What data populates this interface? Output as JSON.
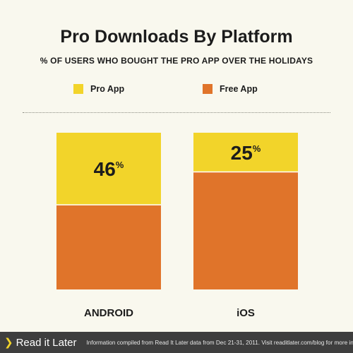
{
  "header": {
    "title": "Pro Downloads By Platform",
    "subtitle": "% OF USERS WHO BOUGHT THE PRO APP OVER THE HOLIDAYS"
  },
  "colors": {
    "pro": "#f2d42a",
    "free": "#e0742a",
    "background": "#f9f8ee",
    "footer": "#3e3e3e"
  },
  "chart_data": {
    "type": "bar",
    "stacked": true,
    "title": "Pro Downloads By Platform",
    "subtitle": "% OF USERS WHO BOUGHT THE PRO APP OVER THE HOLIDAYS",
    "categories": [
      "ANDROID",
      "iOS"
    ],
    "series": [
      {
        "name": "Pro App",
        "values": [
          46,
          25
        ],
        "color": "#f2d42a",
        "position": "top"
      },
      {
        "name": "Free App",
        "values": [
          54,
          75
        ],
        "color": "#e0742a",
        "position": "bottom"
      }
    ],
    "data_labels": [
      "46",
      "25"
    ],
    "label_suffix": "%",
    "ylim": [
      0,
      100
    ],
    "legend_position": "top",
    "grid": false
  },
  "footer": {
    "logo_text": "Read it Later",
    "credit": "Information compiled from Read It Later data from Dec 21-31, 2011. Visit readitlater.com/blog for more info."
  }
}
